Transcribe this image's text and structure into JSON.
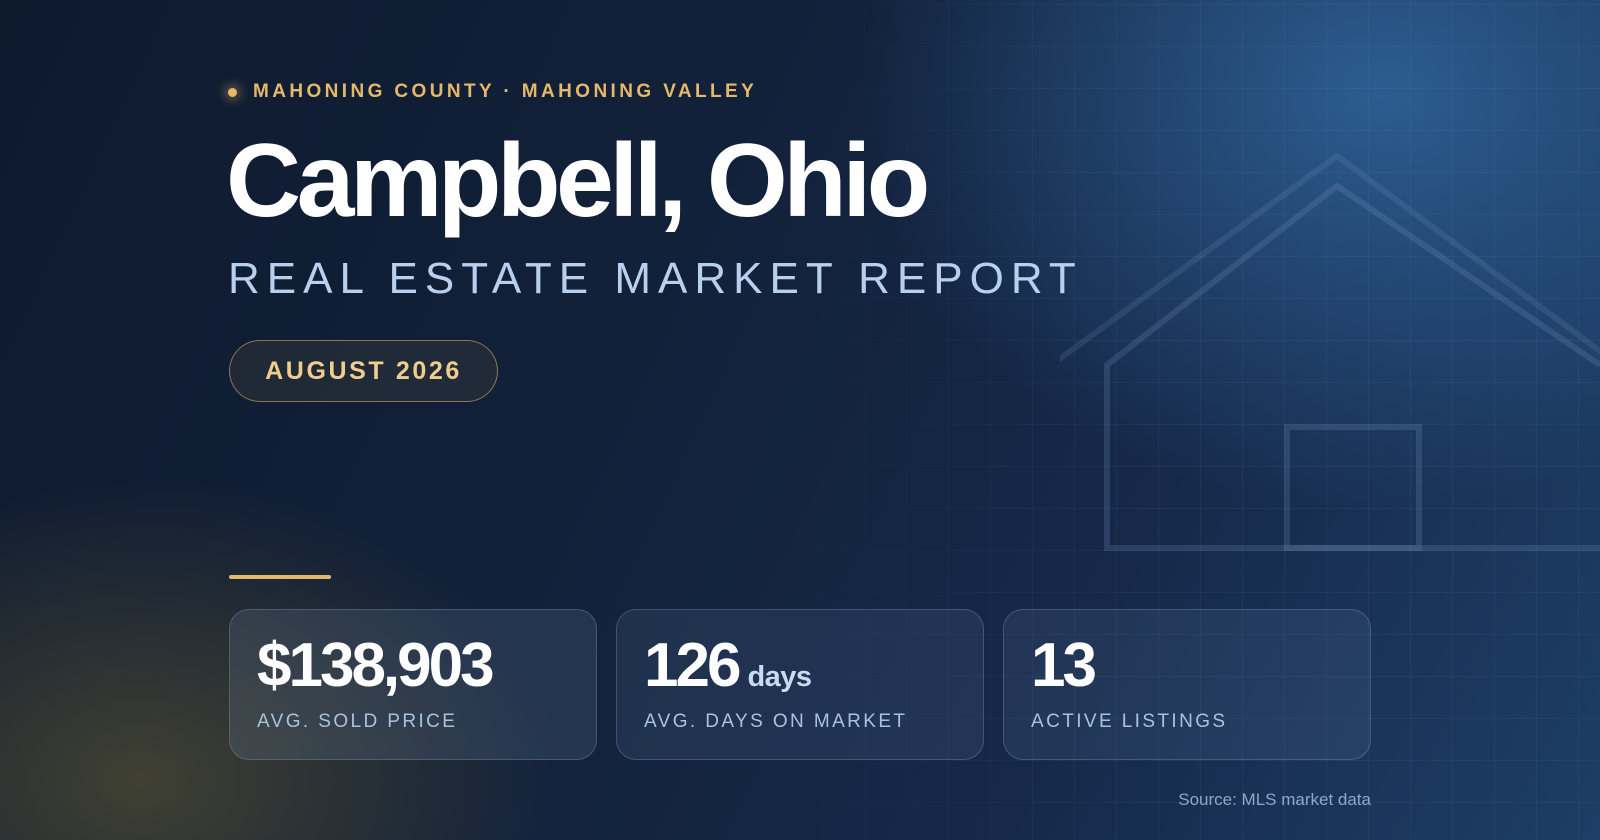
{
  "header": {
    "eyebrow": "MAHONING COUNTY · MAHONING VALLEY",
    "title": "Campbell, Ohio",
    "subtitle": "REAL ESTATE MARKET REPORT",
    "period": "AUGUST 2026"
  },
  "stats": [
    {
      "value": "$138,903",
      "unit": "",
      "label": "AVG. SOLD PRICE"
    },
    {
      "value": "126",
      "unit": "days",
      "label": "AVG. DAYS ON MARKET"
    },
    {
      "value": "13",
      "unit": "",
      "label": "ACTIVE LISTINGS"
    }
  ],
  "footer": {
    "source": "Source: MLS market data"
  },
  "colors": {
    "accent_gold": "#e5b86a",
    "title": "#ffffff",
    "subtitle": "#b8d0ee",
    "background_dark": "#0e1a2e",
    "background_light": "#1d3e66"
  },
  "icons": {
    "house_outline": "house-outline-icon"
  }
}
